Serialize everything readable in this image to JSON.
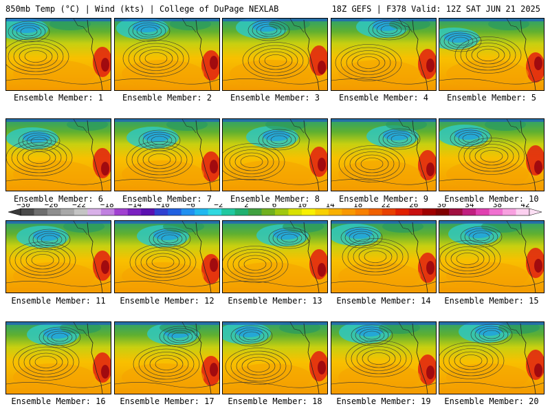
{
  "header": {
    "left": "850mb Temp (°C) | Wind (kts) | College of DuPage NEXLAB",
    "right": "18Z GEFS | F378 Valid: 12Z SAT JUN 21 2025"
  },
  "members": [
    {
      "label": "Ensemble Member: 1"
    },
    {
      "label": "Ensemble Member: 2"
    },
    {
      "label": "Ensemble Member: 3"
    },
    {
      "label": "Ensemble Member: 4"
    },
    {
      "label": "Ensemble Member: 5"
    },
    {
      "label": "Ensemble Member: 6"
    },
    {
      "label": "Ensemble Member: 7"
    },
    {
      "label": "Ensemble Member: 8"
    },
    {
      "label": "Ensemble Member: 9"
    },
    {
      "label": "Ensemble Member: 10"
    },
    {
      "label": "Ensemble Member: 11"
    },
    {
      "label": "Ensemble Member: 12"
    },
    {
      "label": "Ensemble Member: 13"
    },
    {
      "label": "Ensemble Member: 14"
    },
    {
      "label": "Ensemble Member: 15"
    },
    {
      "label": "Ensemble Member: 16"
    },
    {
      "label": "Ensemble Member: 17"
    },
    {
      "label": "Ensemble Member: 18"
    },
    {
      "label": "Ensemble Member: 19"
    },
    {
      "label": "Ensemble Member: 20"
    }
  ],
  "colorbar": {
    "ticks": [
      "−30",
      "−26",
      "−22",
      "−18",
      "−14",
      "−10",
      "−6",
      "−2",
      "2",
      "6",
      "10",
      "14",
      "18",
      "22",
      "26",
      "30",
      "34",
      "38",
      "42"
    ],
    "colors": [
      "#4a4a4a",
      "#6e6e6e",
      "#8e8e8e",
      "#a8a8a8",
      "#c4c4c4",
      "#d8b0e8",
      "#c080e0",
      "#a040d0",
      "#7a20c0",
      "#5a10b0",
      "#3040d0",
      "#2060e0",
      "#2090f0",
      "#20b8f0",
      "#30d8e0",
      "#20c8a0",
      "#20b070",
      "#40a040",
      "#70b020",
      "#a0c810",
      "#d8e000",
      "#f8f000",
      "#f8d000",
      "#f8b000",
      "#f89800",
      "#f88000",
      "#f06000",
      "#e84000",
      "#e02000",
      "#c81010",
      "#a00000",
      "#800000",
      "#a01040",
      "#c02080",
      "#e040b0",
      "#f070d0",
      "#f8a0e0",
      "#fcd0f0"
    ]
  }
}
